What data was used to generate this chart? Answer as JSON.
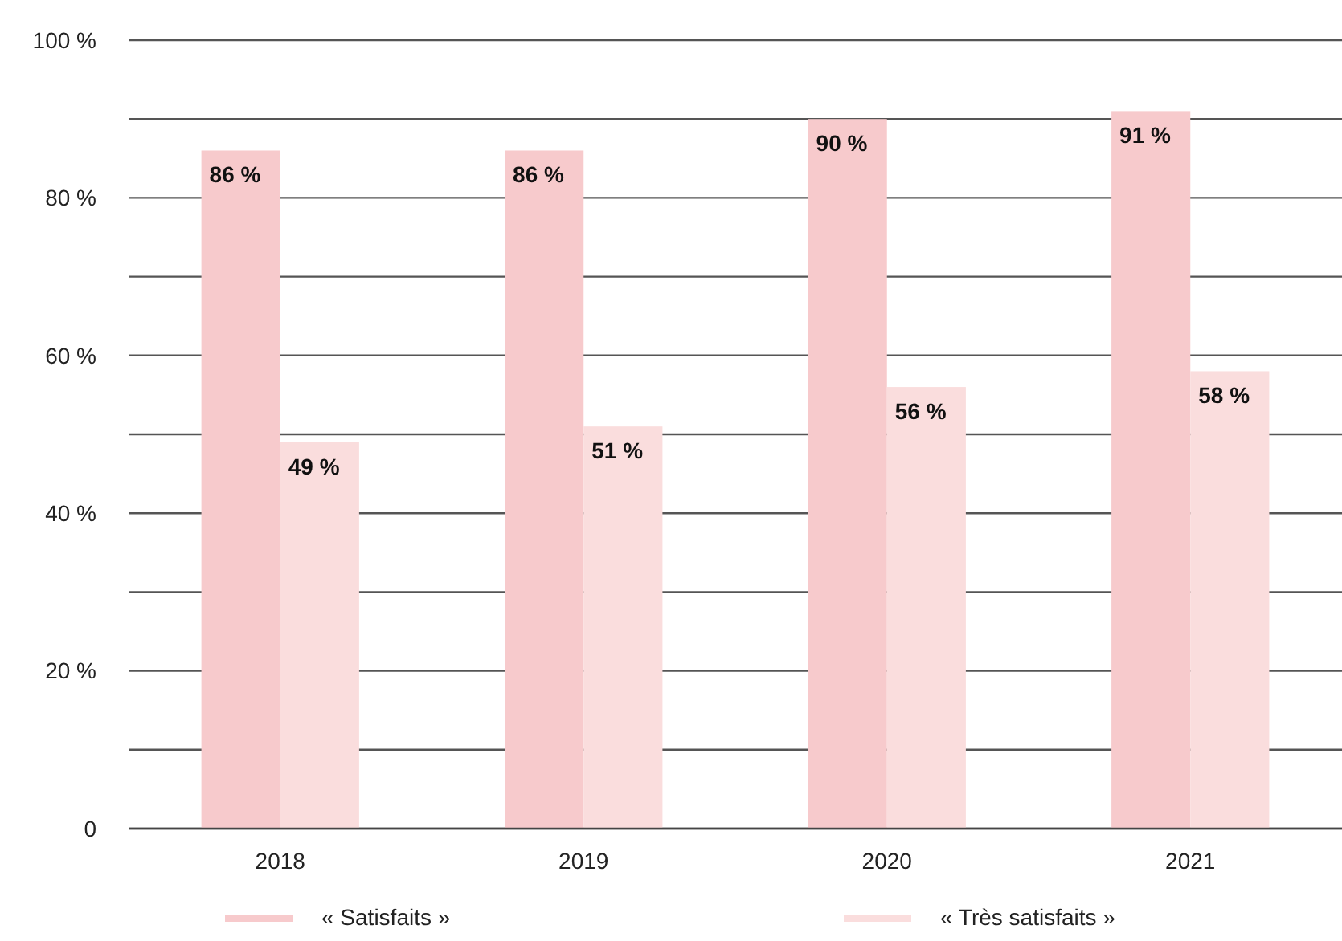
{
  "chart_data": {
    "type": "bar",
    "categories": [
      "2018",
      "2019",
      "2020",
      "2021"
    ],
    "series": [
      {
        "name": "« Satisfaits »",
        "color": "#f7cacc",
        "values": [
          86,
          86,
          90,
          91
        ]
      },
      {
        "name": "« Très satisfaits »",
        "color": "#fadddd",
        "values": [
          49,
          51,
          56,
          58
        ]
      }
    ],
    "ylim": [
      0,
      100
    ],
    "yticks": [
      {
        "value": 0,
        "label": "0"
      },
      {
        "value": 10,
        "label": null
      },
      {
        "value": 20,
        "label": "20 %"
      },
      {
        "value": 30,
        "label": null
      },
      {
        "value": 40,
        "label": "40 %"
      },
      {
        "value": 50,
        "label": null
      },
      {
        "value": 60,
        "label": "60 %"
      },
      {
        "value": 70,
        "label": null
      },
      {
        "value": 80,
        "label": "80 %"
      },
      {
        "value": 90,
        "label": null
      },
      {
        "value": 100,
        "label": "100 %"
      }
    ],
    "value_labels": [
      [
        "86 %",
        "86 %",
        "90 %",
        "91 %"
      ],
      [
        "49 %",
        "51 %",
        "56 %",
        "58 %"
      ]
    ],
    "grid": "y",
    "legend": "bottom"
  }
}
